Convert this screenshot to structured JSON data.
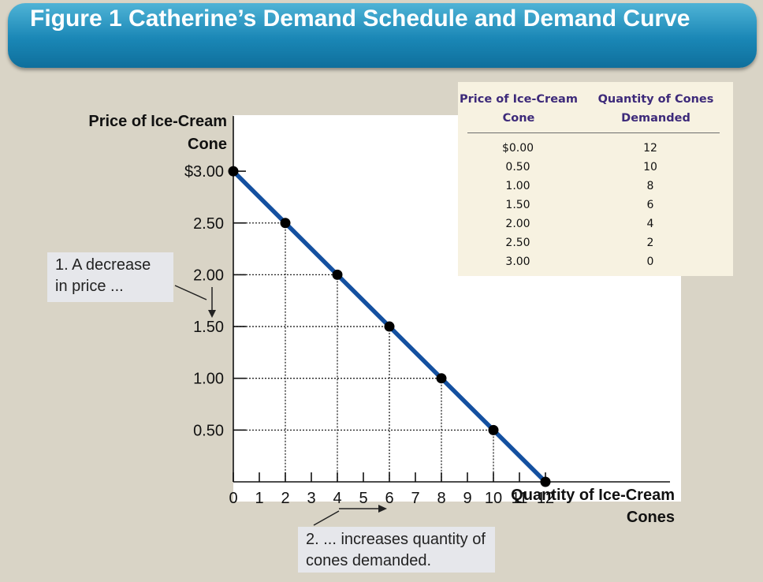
{
  "title": "Figure 1 Catherine’s Demand Schedule and Demand Curve",
  "schedule": {
    "headers": {
      "price": "Price of Ice-Cream Cone",
      "quantity": "Quantity of Cones Demanded"
    },
    "rows": [
      {
        "price": "$0.00",
        "quantity": "12"
      },
      {
        "price": "0.50",
        "quantity": "10"
      },
      {
        "price": "1.00",
        "quantity": "8"
      },
      {
        "price": "1.50",
        "quantity": "6"
      },
      {
        "price": "2.00",
        "quantity": "4"
      },
      {
        "price": "2.50",
        "quantity": "2"
      },
      {
        "price": "3.00",
        "quantity": "0"
      }
    ]
  },
  "annotations": {
    "price_decrease": "1. A decrease in price ...",
    "quantity_increase": "2. ... increases quantity of cones demanded."
  },
  "colors": {
    "title_bar": "#1a87b6",
    "demand_curve": "#1450a0",
    "schedule_header": "#3d2a7a",
    "annotation_box": "#e6e7eb"
  },
  "chart_data": {
    "type": "line",
    "xlabel": "Quantity of Ice-Cream Cones",
    "ylabel": "Price of Ice-Cream Cone",
    "xlim": [
      0,
      12
    ],
    "ylim": [
      0,
      3
    ],
    "x_ticks": [
      "0",
      "1",
      "2",
      "3",
      "4",
      "5",
      "6",
      "7",
      "8",
      "9",
      "10",
      "11",
      "12"
    ],
    "y_ticks": [
      "0.50",
      "1.00",
      "1.50",
      "2.00",
      "2.50",
      "$3.00"
    ],
    "y_tick_values": [
      0.5,
      1,
      1.5,
      2,
      2.5,
      3
    ],
    "grid": false,
    "series": [
      {
        "name": "",
        "x": [
          0,
          2,
          4,
          6,
          8,
          10,
          12
        ],
        "y": [
          3.0,
          2.5,
          2.0,
          1.5,
          1.0,
          0.5,
          0.0
        ]
      }
    ]
  }
}
